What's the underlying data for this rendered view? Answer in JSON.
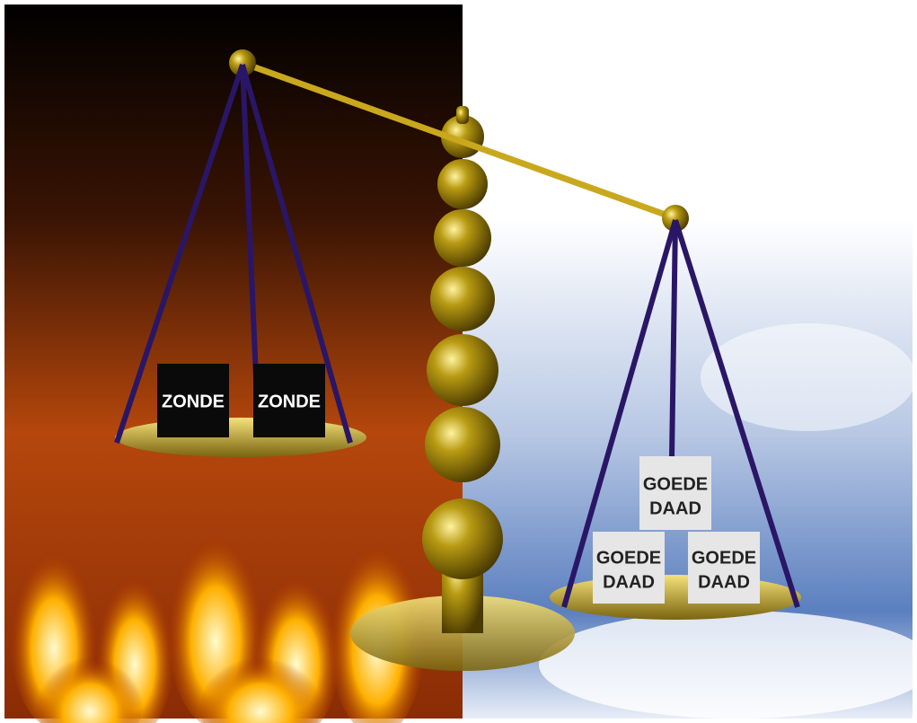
{
  "left_pan": {
    "blocks": [
      {
        "label": "ZONDE"
      },
      {
        "label": "ZONDE"
      }
    ]
  },
  "right_pan": {
    "blocks": [
      {
        "lines": [
          "GOEDE",
          "DAAD"
        ]
      },
      {
        "lines": [
          "GOEDE",
          "DAAD"
        ]
      },
      {
        "lines": [
          "GOEDE",
          "DAAD"
        ]
      }
    ]
  }
}
